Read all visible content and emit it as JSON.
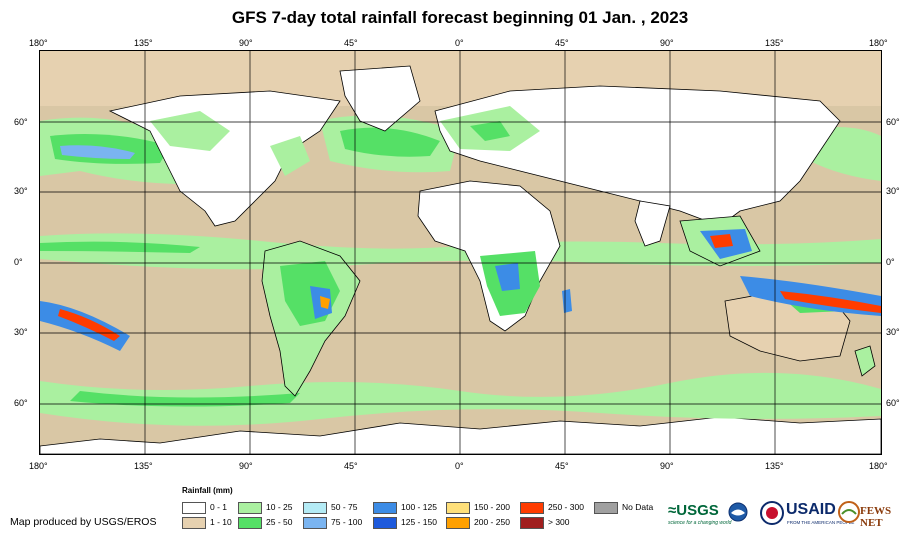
{
  "title": "GFS 7-day total rainfall forecast beginning 01 Jan. , 2023",
  "axes": {
    "top_lon": [
      "180°",
      "135°",
      "90°",
      "45°",
      "0°",
      "45°",
      "90°",
      "135°",
      "180°"
    ],
    "bottom_lon": [
      "180°",
      "135°",
      "90°",
      "45°",
      "0°",
      "45°",
      "90°",
      "135°",
      "180°"
    ],
    "left_lat": [
      "60°",
      "30°",
      "0°",
      "30°",
      "60°"
    ],
    "right_lat": [
      "60°",
      "30°",
      "0°",
      "30°",
      "60°"
    ]
  },
  "legend": {
    "title": "Rainfall (mm)",
    "items": [
      {
        "label": "0 - 1",
        "color": "#ffffff"
      },
      {
        "label": "1 - 10",
        "color": "#e6d1b0"
      },
      {
        "label": "10 - 25",
        "color": "#aaf0a0"
      },
      {
        "label": "25 - 50",
        "color": "#55e066"
      },
      {
        "label": "50 - 75",
        "color": "#b4ebf5"
      },
      {
        "label": "75 - 100",
        "color": "#7ab4f0"
      },
      {
        "label": "100 - 125",
        "color": "#3c8ce6"
      },
      {
        "label": "125 - 150",
        "color": "#1e5adc"
      },
      {
        "label": "150 - 200",
        "color": "#ffe07a"
      },
      {
        "label": "200 - 250",
        "color": "#ffa000"
      },
      {
        "label": "250 - 300",
        "color": "#ff3c00"
      },
      {
        "label": "> 300",
        "color": "#a01e1e"
      },
      {
        "label": "No Data",
        "color": "#a0a0a0"
      }
    ]
  },
  "credit": "Map produced by USGS/EROS",
  "logos": {
    "usgs": "≈USGS",
    "usgs_tagline": "science for a changing world",
    "usaid": "USAID",
    "usaid_tagline": "FROM THE AMERICAN PEOPLE",
    "fews": "FEWS NET"
  }
}
